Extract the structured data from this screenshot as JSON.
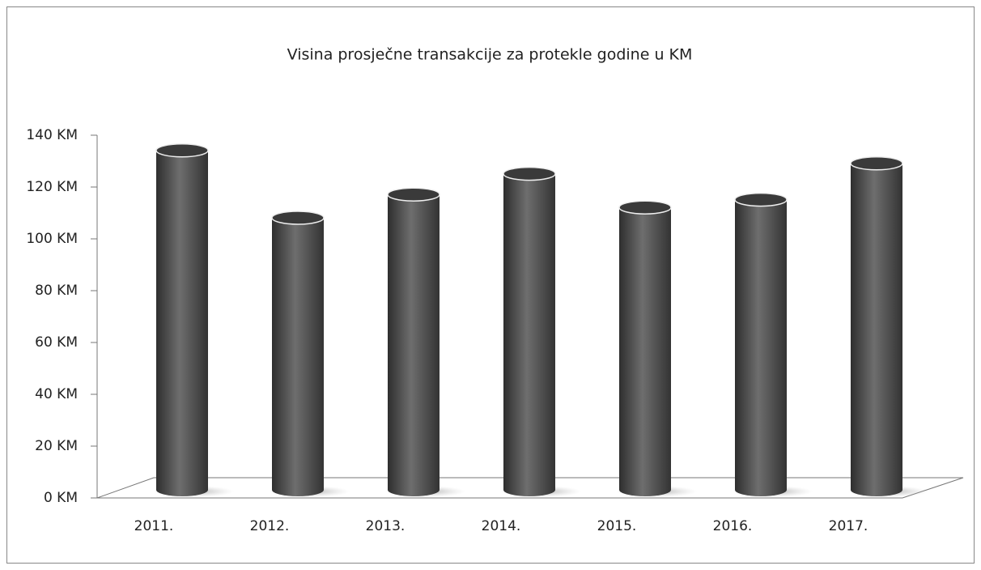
{
  "chart_data": {
    "type": "bar",
    "title": "Visina  prosječne transakcije za protekle godine u KM",
    "categories": [
      "2011.",
      "2012.",
      "2013.",
      "2014.",
      "2015.",
      "2016.",
      "2017."
    ],
    "values": [
      131,
      105,
      114,
      122,
      109,
      112,
      126
    ],
    "color": "#555555",
    "ylim": [
      0,
      140
    ],
    "yticks": [
      {
        "value": 0,
        "label": "0 KM"
      },
      {
        "value": 20,
        "label": "20 KM"
      },
      {
        "value": 40,
        "label": "40 KM"
      },
      {
        "value": 60,
        "label": "60 KM"
      },
      {
        "value": 80,
        "label": "80 KM"
      },
      {
        "value": 100,
        "label": "100 KM"
      },
      {
        "value": 120,
        "label": "120 KM"
      },
      {
        "value": 140,
        "label": "140 KM"
      }
    ]
  }
}
